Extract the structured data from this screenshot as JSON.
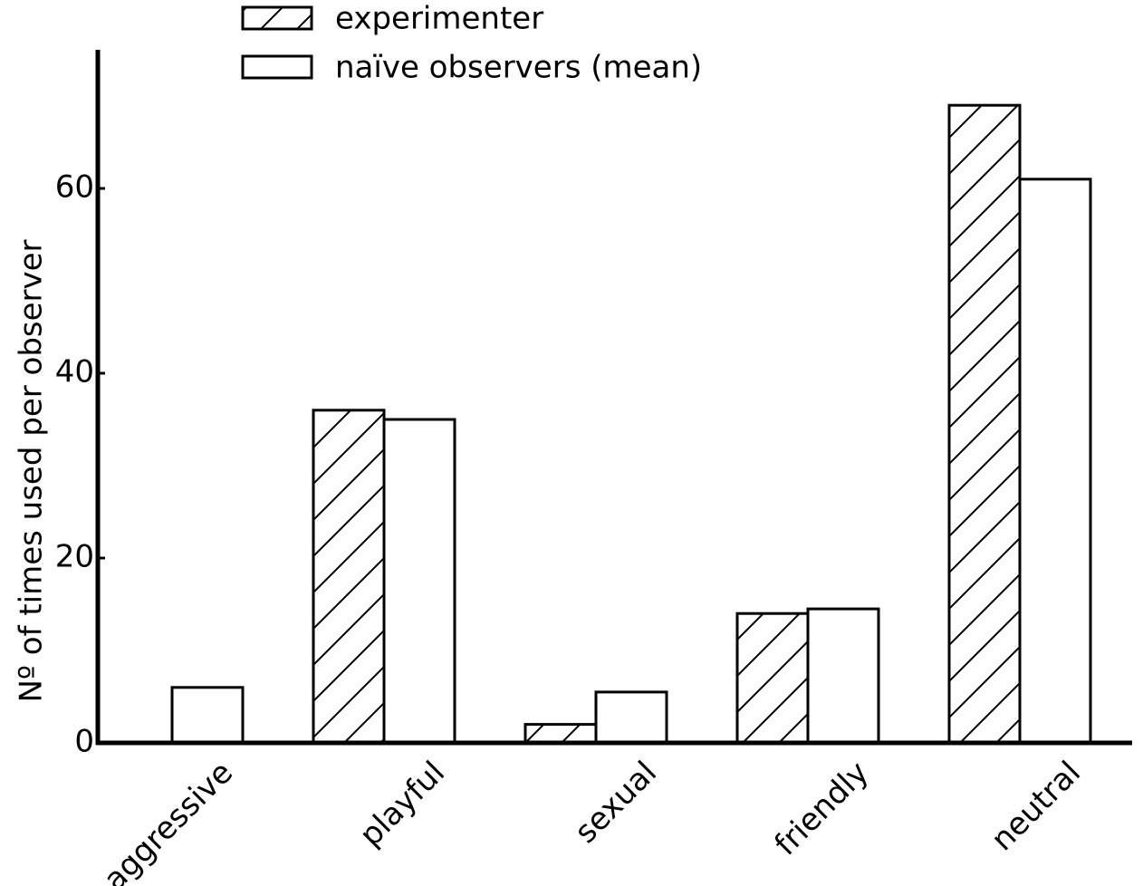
{
  "chart_data": {
    "type": "bar",
    "categories": [
      "aggressive",
      "playful",
      "sexual",
      "friendly",
      "neutral"
    ],
    "series": [
      {
        "name": "experimenter",
        "color": "#000000",
        "pattern": "hatch",
        "values": [
          0,
          36,
          2,
          14,
          69
        ]
      },
      {
        "name": "naïve observers (mean)",
        "color": "#000000",
        "pattern": "none",
        "values": [
          6,
          35,
          5.5,
          14.5,
          61
        ]
      }
    ],
    "y_label": "Nº of times used per observer",
    "ylim": [
      0,
      75
    ],
    "yticks": [
      0,
      20,
      40,
      60
    ],
    "grid": false
  }
}
